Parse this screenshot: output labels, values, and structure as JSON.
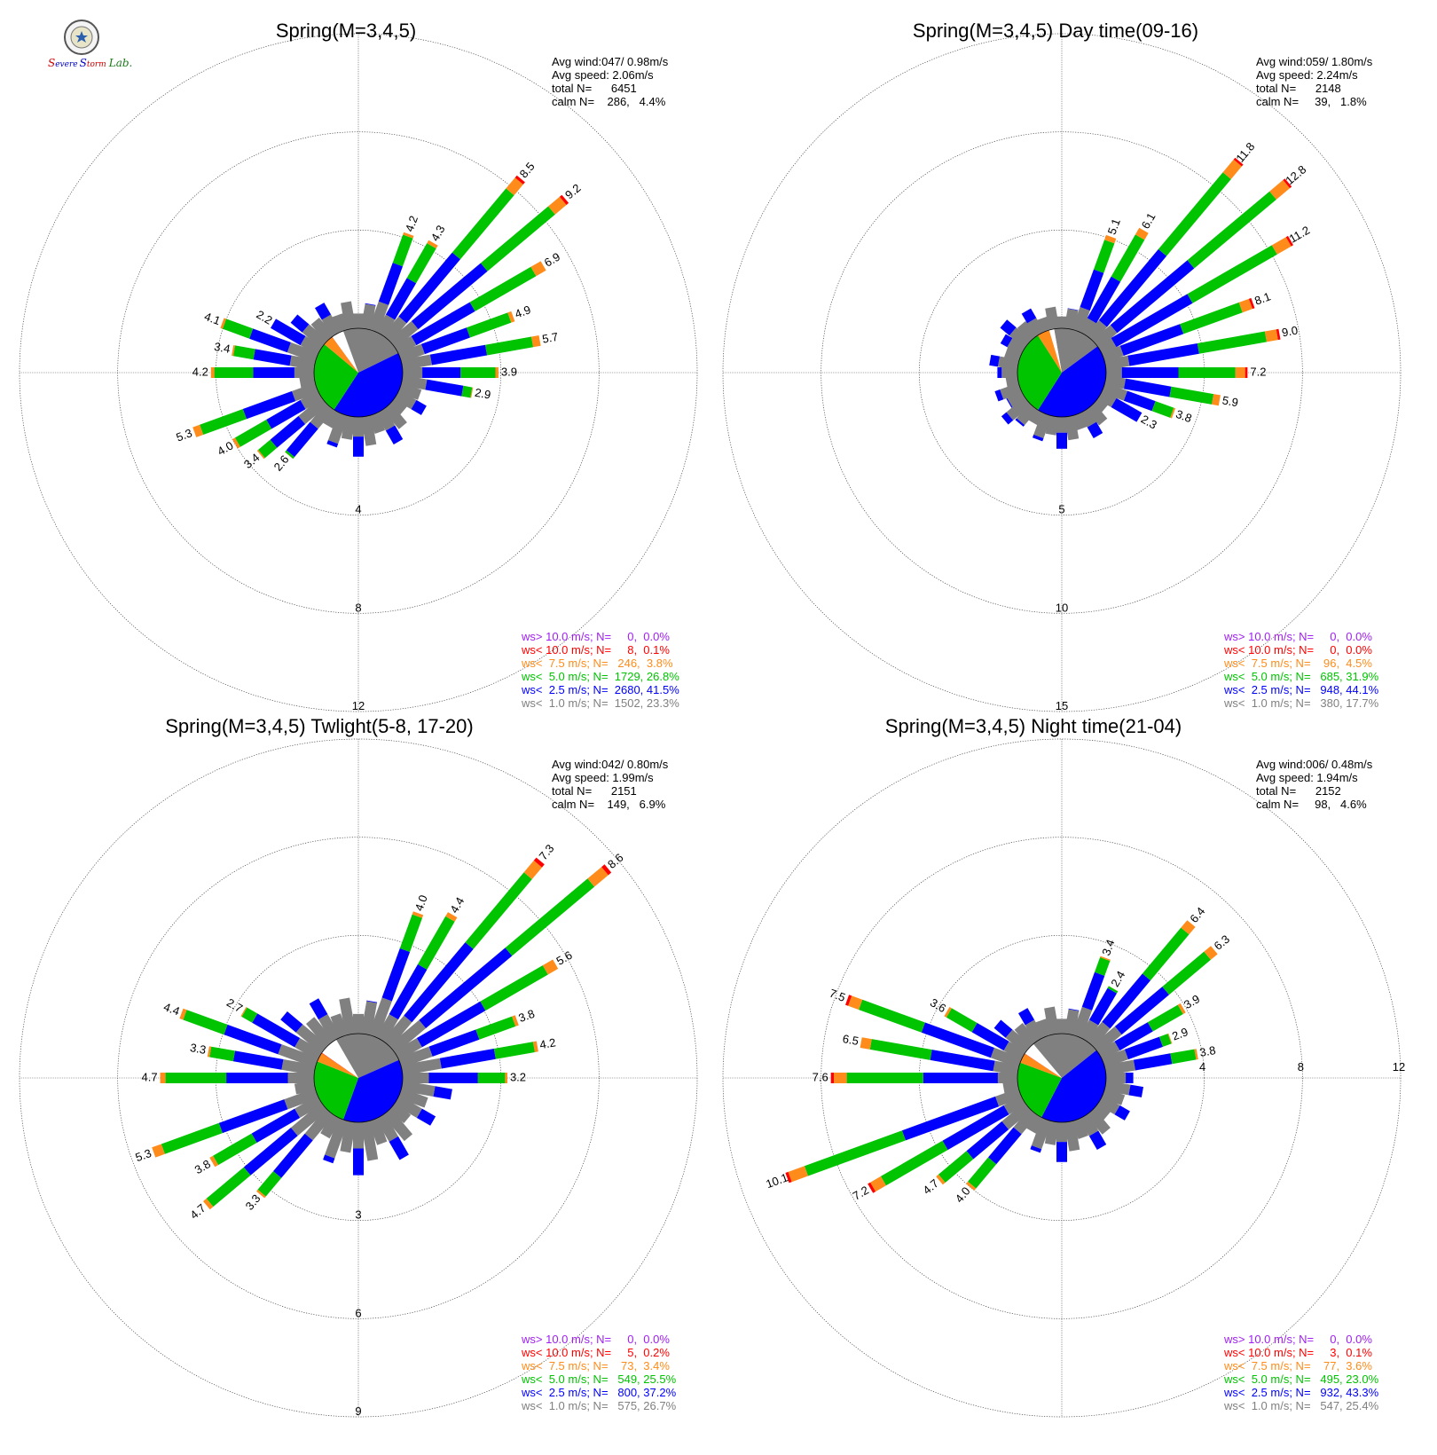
{
  "logo": {
    "text": "Severe Storm Lab.",
    "icon": "university-seal-icon"
  },
  "colors": {
    "ws_gt_10": "#a020f0",
    "ws_lt_10": "#ff0000",
    "ws_lt_7_5": "#ff8c1a",
    "ws_lt_5": "#00c400",
    "ws_lt_2_5": "#0000ff",
    "ws_lt_1": "#808080"
  },
  "chart_data": [
    {
      "type": "windrose",
      "title": "Spring(M=3,4,5)",
      "stats": [
        "Avg wind:047/ 0.98m/s",
        "Avg speed: 2.06m/s",
        "total N=      6451",
        "calm N=    286,   4.4%"
      ],
      "rings": [
        4,
        8,
        12
      ],
      "max": 12,
      "label_axis": "south",
      "pie": [
        {
          "cls": "ws_lt_1",
          "pct": 23.3
        },
        {
          "cls": "ws_lt_2_5",
          "pct": 41.5
        },
        {
          "cls": "ws_lt_5",
          "pct": 26.8
        },
        {
          "cls": "ws_lt_7_5",
          "pct": 3.8
        },
        {
          "cls": "ws_lt_10",
          "pct": 0.1
        },
        {
          "cls": "calm",
          "pct": 4.4
        }
      ],
      "bars": [
        {
          "dir": 20,
          "total": 4.2,
          "label": "4.2"
        },
        {
          "dir": 30,
          "total": 4.3,
          "label": "4.3"
        },
        {
          "dir": 40,
          "total": 8.5,
          "label": "8.5"
        },
        {
          "dir": 50,
          "total": 9.2,
          "label": "9.2"
        },
        {
          "dir": 60,
          "total": 6.9,
          "label": "6.9"
        },
        {
          "dir": 70,
          "total": 4.9,
          "label": "4.9"
        },
        {
          "dir": 80,
          "total": 5.7,
          "label": "5.7"
        },
        {
          "dir": 90,
          "total": 3.9,
          "label": "3.9"
        },
        {
          "dir": 100,
          "total": 2.9,
          "label": "2.9"
        },
        {
          "dir": 220,
          "total": 2.6,
          "label": "2.6"
        },
        {
          "dir": 230,
          "total": 3.4,
          "label": "3.4"
        },
        {
          "dir": 240,
          "total": 4.0,
          "label": "4.0"
        },
        {
          "dir": 250,
          "total": 5.3,
          "label": "5.3"
        },
        {
          "dir": 270,
          "total": 4.2,
          "label": "4.2"
        },
        {
          "dir": 280,
          "total": 3.4,
          "label": "3.4"
        },
        {
          "dir": 290,
          "total": 4.1,
          "label": "4.1"
        },
        {
          "dir": 300,
          "total": 2.2,
          "label": "2.2"
        }
      ],
      "legend": [
        {
          "cls": "ws_gt_10",
          "text": "ws> 10.0 m/s; N=     0,  0.0%"
        },
        {
          "cls": "ws_lt_10",
          "text": "ws< 10.0 m/s; N=     8,  0.1%"
        },
        {
          "cls": "ws_lt_7_5",
          "text": "ws<  7.5 m/s; N=   246,  3.8%"
        },
        {
          "cls": "ws_lt_5",
          "text": "ws<  5.0 m/s; N=  1729, 26.8%"
        },
        {
          "cls": "ws_lt_2_5",
          "text": "ws<  2.5 m/s; N=  2680, 41.5%"
        },
        {
          "cls": "ws_lt_1",
          "text": "ws<  1.0 m/s; N=  1502, 23.3%"
        }
      ]
    },
    {
      "type": "windrose",
      "title": "Spring(M=3,4,5) Day time(09-16)",
      "stats": [
        "Avg wind:059/ 1.80m/s",
        "Avg speed: 2.24m/s",
        "total N=      2148",
        "calm N=     39,   1.8%"
      ],
      "rings": [
        5,
        10,
        15
      ],
      "max": 15,
      "label_axis": "south",
      "pie": [
        {
          "cls": "ws_lt_1",
          "pct": 17.7
        },
        {
          "cls": "ws_lt_2_5",
          "pct": 44.1
        },
        {
          "cls": "ws_lt_5",
          "pct": 31.9
        },
        {
          "cls": "ws_lt_7_5",
          "pct": 4.5
        },
        {
          "cls": "calm",
          "pct": 1.8
        }
      ],
      "bars": [
        {
          "dir": 20,
          "total": 5.1,
          "label": "5.1"
        },
        {
          "dir": 30,
          "total": 6.1,
          "label": "6.1"
        },
        {
          "dir": 40,
          "total": 11.8,
          "label": "11.8"
        },
        {
          "dir": 50,
          "total": 12.8,
          "label": "12.8"
        },
        {
          "dir": 60,
          "total": 11.2,
          "label": "11.2"
        },
        {
          "dir": 70,
          "total": 8.1,
          "label": "8.1"
        },
        {
          "dir": 80,
          "total": 9.0,
          "label": "9.0"
        },
        {
          "dir": 90,
          "total": 7.2,
          "label": "7.2"
        },
        {
          "dir": 100,
          "total": 5.9,
          "label": "5.9"
        },
        {
          "dir": 110,
          "total": 3.8,
          "label": "3.8"
        },
        {
          "dir": 120,
          "total": 2.3,
          "label": "2.3"
        }
      ],
      "legend": [
        {
          "cls": "ws_gt_10",
          "text": "ws> 10.0 m/s; N=     0,  0.0%"
        },
        {
          "cls": "ws_lt_10",
          "text": "ws< 10.0 m/s; N=     0,  0.0%"
        },
        {
          "cls": "ws_lt_7_5",
          "text": "ws<  7.5 m/s; N=    96,  4.5%"
        },
        {
          "cls": "ws_lt_5",
          "text": "ws<  5.0 m/s; N=   685, 31.9%"
        },
        {
          "cls": "ws_lt_2_5",
          "text": "ws<  2.5 m/s; N=   948, 44.1%"
        },
        {
          "cls": "ws_lt_1",
          "text": "ws<  1.0 m/s; N=   380, 17.7%"
        }
      ]
    },
    {
      "type": "windrose",
      "title": "Spring(M=3,4,5) Twlight(5-8, 17-20)",
      "stats": [
        "Avg wind:042/ 0.80m/s",
        "Avg speed: 1.99m/s",
        "total N=      2151",
        "calm N=    149,   6.9%"
      ],
      "rings": [
        3,
        6,
        9
      ],
      "max": 9,
      "label_axis": "south",
      "pie": [
        {
          "cls": "ws_lt_1",
          "pct": 26.7
        },
        {
          "cls": "ws_lt_2_5",
          "pct": 37.2
        },
        {
          "cls": "ws_lt_5",
          "pct": 25.5
        },
        {
          "cls": "ws_lt_7_5",
          "pct": 3.4
        },
        {
          "cls": "ws_lt_10",
          "pct": 0.2
        },
        {
          "cls": "calm",
          "pct": 6.9
        }
      ],
      "bars": [
        {
          "dir": 20,
          "total": 4.0,
          "label": "4.0"
        },
        {
          "dir": 30,
          "total": 4.4,
          "label": "4.4"
        },
        {
          "dir": 40,
          "total": 7.3,
          "label": "7.3"
        },
        {
          "dir": 50,
          "total": 8.6,
          "label": "8.6"
        },
        {
          "dir": 60,
          "total": 5.6,
          "label": "5.6"
        },
        {
          "dir": 70,
          "total": 3.8,
          "label": "3.8"
        },
        {
          "dir": 80,
          "total": 4.2,
          "label": "4.2"
        },
        {
          "dir": 90,
          "total": 3.2,
          "label": "3.2"
        },
        {
          "dir": 220,
          "total": 3.3,
          "label": "3.3"
        },
        {
          "dir": 230,
          "total": 4.7,
          "label": "4.7"
        },
        {
          "dir": 240,
          "total": 3.8,
          "label": "3.8"
        },
        {
          "dir": 250,
          "total": 5.3,
          "label": "5.3"
        },
        {
          "dir": 270,
          "total": 4.7,
          "label": "4.7"
        },
        {
          "dir": 280,
          "total": 3.3,
          "label": "3.3"
        },
        {
          "dir": 290,
          "total": 4.4,
          "label": "4.4"
        },
        {
          "dir": 300,
          "total": 2.7,
          "label": "2.7"
        }
      ],
      "legend": [
        {
          "cls": "ws_gt_10",
          "text": "ws> 10.0 m/s; N=     0,  0.0%"
        },
        {
          "cls": "ws_lt_10",
          "text": "ws< 10.0 m/s; N=     5,  0.2%"
        },
        {
          "cls": "ws_lt_7_5",
          "text": "ws<  7.5 m/s; N=    73,  3.4%"
        },
        {
          "cls": "ws_lt_5",
          "text": "ws<  5.0 m/s; N=   549, 25.5%"
        },
        {
          "cls": "ws_lt_2_5",
          "text": "ws<  2.5 m/s; N=   800, 37.2%"
        },
        {
          "cls": "ws_lt_1",
          "text": "ws<  1.0 m/s; N=   575, 26.7%"
        }
      ]
    },
    {
      "type": "windrose",
      "title": "Spring(M=3,4,5) Night time(21-04)",
      "stats": [
        "Avg wind:006/ 0.48m/s",
        "Avg speed: 1.94m/s",
        "total N=      2152",
        "calm N=     98,   4.6%"
      ],
      "rings": [
        4,
        8,
        12
      ],
      "max": 12,
      "label_axis": "east",
      "pie": [
        {
          "cls": "ws_lt_1",
          "pct": 25.4
        },
        {
          "cls": "ws_lt_2_5",
          "pct": 43.3
        },
        {
          "cls": "ws_lt_5",
          "pct": 23.0
        },
        {
          "cls": "ws_lt_7_5",
          "pct": 3.6
        },
        {
          "cls": "ws_lt_10",
          "pct": 0.1
        },
        {
          "cls": "calm",
          "pct": 4.6
        }
      ],
      "bars": [
        {
          "dir": 20,
          "total": 3.4,
          "label": "3.4"
        },
        {
          "dir": 30,
          "total": 2.4,
          "label": "2.4"
        },
        {
          "dir": 40,
          "total": 6.4,
          "label": "6.4"
        },
        {
          "dir": 50,
          "total": 6.3,
          "label": "6.3"
        },
        {
          "dir": 60,
          "total": 3.9,
          "label": "3.9"
        },
        {
          "dir": 70,
          "total": 2.9,
          "label": "2.9"
        },
        {
          "dir": 80,
          "total": 3.8,
          "label": "3.8"
        },
        {
          "dir": 220,
          "total": 4.0,
          "label": "4.0"
        },
        {
          "dir": 230,
          "total": 4.7,
          "label": "4.7"
        },
        {
          "dir": 240,
          "total": 7.2,
          "label": "7.2"
        },
        {
          "dir": 250,
          "total": 10.1,
          "label": "10.1"
        },
        {
          "dir": 270,
          "total": 7.6,
          "label": "7.6"
        },
        {
          "dir": 280,
          "total": 6.5,
          "label": "6.5"
        },
        {
          "dir": 290,
          "total": 7.5,
          "label": "7.5"
        },
        {
          "dir": 300,
          "total": 3.6,
          "label": "3.6"
        }
      ],
      "legend": [
        {
          "cls": "ws_gt_10",
          "text": "ws> 10.0 m/s; N=     0,  0.0%"
        },
        {
          "cls": "ws_lt_10",
          "text": "ws< 10.0 m/s; N=     3,  0.1%"
        },
        {
          "cls": "ws_lt_7_5",
          "text": "ws<  7.5 m/s; N=    77,  3.6%"
        },
        {
          "cls": "ws_lt_5",
          "text": "ws<  5.0 m/s; N=   495, 23.0%"
        },
        {
          "cls": "ws_lt_2_5",
          "text": "ws<  2.5 m/s; N=   932, 43.3%"
        },
        {
          "cls": "ws_lt_1",
          "text": "ws<  1.0 m/s; N=   547, 25.4%"
        }
      ]
    }
  ]
}
